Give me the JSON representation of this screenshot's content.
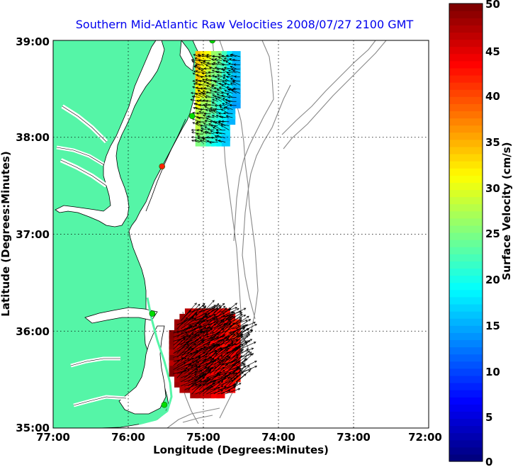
{
  "title": "Southern Mid-Atlantic Raw Velocities 2008/07/27 2100 GMT",
  "x_axis": {
    "label": "Longitude (Degrees:Minutes)",
    "ticks": [
      "77:00",
      "76:00",
      "75:00",
      "74:00",
      "73:00",
      "72:00"
    ],
    "range": [
      -77,
      -72
    ]
  },
  "y_axis": {
    "label": "Latitude (Degrees:Minutes)",
    "ticks": [
      "39:00",
      "38:00",
      "37:00",
      "36:00",
      "35:00"
    ],
    "range": [
      35,
      39
    ]
  },
  "colorbar": {
    "label": "Surface Velocity (cm/s)",
    "ticks": [
      "50",
      "45",
      "40",
      "35",
      "30",
      "25",
      "20",
      "15",
      "10",
      "5",
      "0"
    ],
    "range": [
      0,
      50
    ],
    "colormap": "jet"
  },
  "colors": {
    "land": "#55f5a7",
    "coast": "#000000",
    "bathymetry": "#888888",
    "grid": "#000000",
    "title": "#0000ee",
    "station": "#00dd00",
    "station_active": "#ff2200"
  },
  "stations": [
    {
      "lon": -74.88,
      "lat": 39.0,
      "active": false
    },
    {
      "lon": -75.15,
      "lat": 38.22,
      "active": false
    },
    {
      "lon": -75.55,
      "lat": 37.7,
      "active": true
    },
    {
      "lon": -75.68,
      "lat": 36.18,
      "active": false
    },
    {
      "lon": -75.52,
      "lat": 35.24,
      "active": false
    }
  ],
  "velocity_regions": [
    {
      "name": "north",
      "lon": [
        -75.05,
        -74.5
      ],
      "lat": [
        37.95,
        38.85
      ],
      "speed_range": [
        8,
        38
      ]
    },
    {
      "name": "south",
      "lon": [
        -75.4,
        -74.5
      ],
      "lat": [
        35.35,
        36.2
      ],
      "speed_range": [
        30,
        50
      ]
    }
  ]
}
